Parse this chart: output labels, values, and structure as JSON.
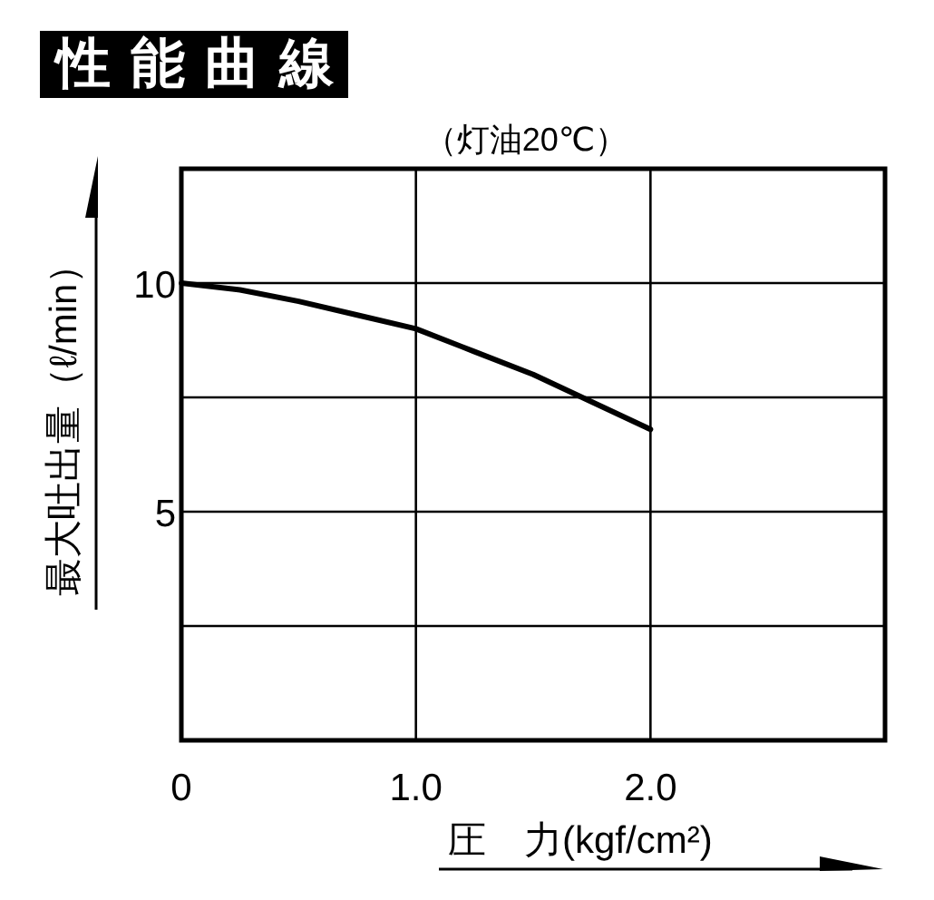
{
  "chart_data": {
    "type": "line",
    "title": "性能曲線",
    "subtitle": "（灯油20℃）",
    "xlabel": "圧　力(kgf/cm²)",
    "ylabel": "最大吐出量（ℓ/min）",
    "x": [
      0,
      0.25,
      0.5,
      0.75,
      1.0,
      1.25,
      1.5,
      1.75,
      2.0
    ],
    "values": [
      10,
      9.85,
      9.6,
      9.3,
      9.0,
      8.5,
      8.0,
      7.4,
      6.8
    ],
    "color": "#000000",
    "xlim": [
      0,
      3
    ],
    "ylim": [
      0,
      12.5
    ],
    "xticks": [
      0,
      {
        "value": 1,
        "label": "1.0"
      },
      {
        "value": 2,
        "label": "2.0"
      },
      {
        "value": 3,
        "label": null
      }
    ],
    "yticks": [
      {
        "value": 2.5,
        "label": null
      },
      5,
      {
        "value": 7.5,
        "label": null
      },
      10,
      {
        "value": 12.5,
        "label": null
      }
    ],
    "grid": true
  }
}
